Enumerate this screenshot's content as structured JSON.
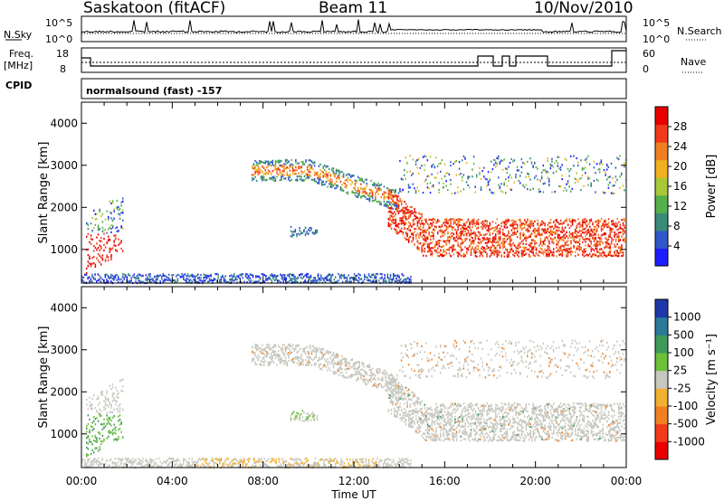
{
  "header": {
    "station": "Saskatoon (fitACF)",
    "beam": "Beam 11",
    "date": "10/Nov/2010"
  },
  "strip_labels": {
    "nsky": "N.Sky",
    "nsearch": "N.Search",
    "freq_line1": "Freq.",
    "freq_line2": "[MHz]",
    "nave": "Nave",
    "cpid": "CPID",
    "cpid_value": "normalsound (fast) -157",
    "nsky_top": "10^5",
    "nsky_bottom": "10^0",
    "nsearch_top": "10^5",
    "nsearch_bottom": "10^0",
    "freq_top": "18",
    "freq_bottom": "8",
    "nave_top": "60",
    "nave_bottom": "0"
  },
  "chart_data": [
    {
      "type": "heatmap",
      "name": "power",
      "ylabel": "Slant Range [km]",
      "yticks": [
        "1000",
        "2000",
        "3000",
        "4000"
      ],
      "ylim": [
        200,
        4500
      ],
      "colorbar_label": "Power [dB]",
      "colorbar_ticks": [
        "4",
        "8",
        "12",
        "16",
        "20",
        "24",
        "28"
      ],
      "colors": [
        "#1d1dff",
        "#2f57c9",
        "#3a8a7a",
        "#56b04b",
        "#a8c83a",
        "#f0b020",
        "#f08020",
        "#f03a1a",
        "#e80000"
      ]
    },
    {
      "type": "heatmap",
      "name": "velocity",
      "ylabel": "Slant Range [km]",
      "yticks": [
        "1000",
        "2000",
        "3000",
        "4000"
      ],
      "ylim": [
        200,
        4500
      ],
      "colorbar_label": "Velocity [m s⁻¹]",
      "colorbar_ticks": [
        "1000",
        "500",
        "100",
        "25",
        "-25",
        "-100",
        "-500",
        "-1000"
      ],
      "colors": [
        "#2037a8",
        "#2a7a9a",
        "#3e9a5a",
        "#6cc03a",
        "#c8c8c0",
        "#f0b030",
        "#f08020",
        "#f03a1a",
        "#e80000"
      ]
    }
  ],
  "xaxis": {
    "label": "Time UT",
    "ticks": [
      "00:00",
      "04:00",
      "08:00",
      "12:00",
      "16:00",
      "20:00",
      "00:00"
    ]
  }
}
